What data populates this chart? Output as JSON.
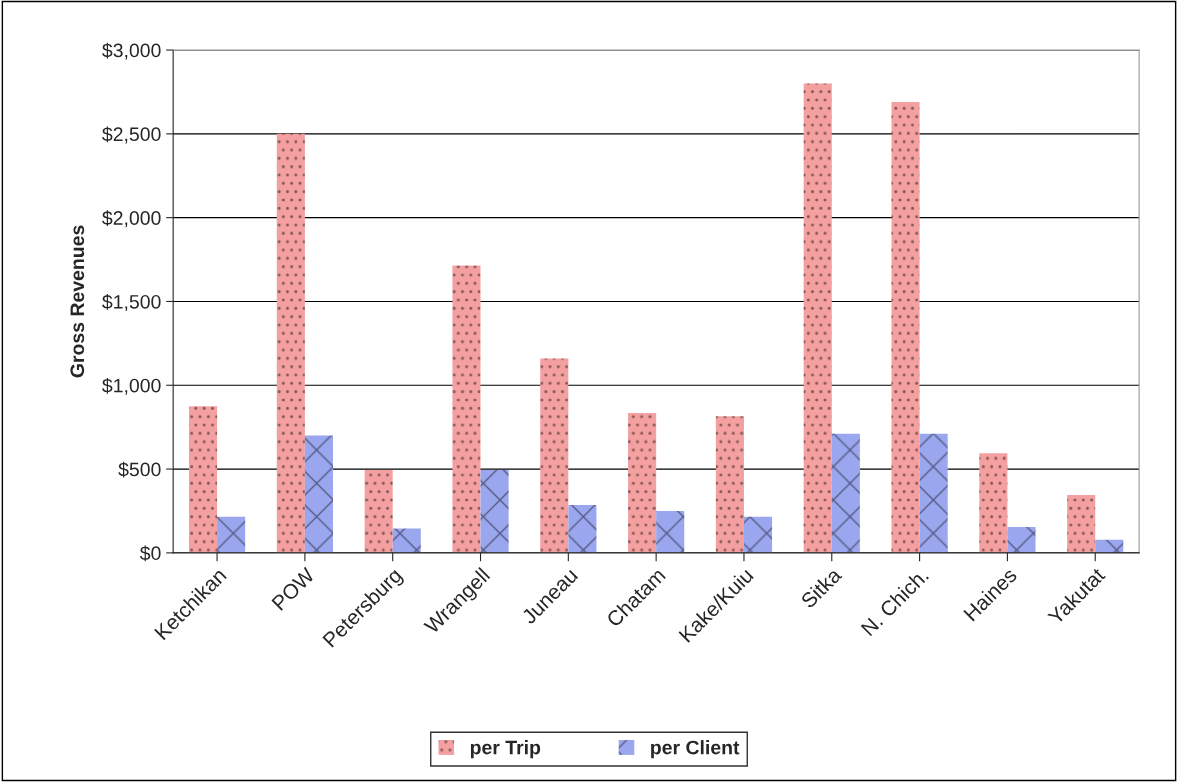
{
  "chart_data": {
    "type": "bar",
    "ylabel": "Gross Revenues",
    "categories": [
      "Ketchikan",
      "POW",
      "Petersburg",
      "Wrangell",
      "Juneau",
      "Chatam",
      "Kake/Kuiu",
      "Sitka",
      "N. Chich.",
      "Haines",
      "Yakutat"
    ],
    "series": [
      {
        "name": "per Trip",
        "color": "#f4a0a0",
        "values": [
          875,
          2500,
          495,
          1715,
          1160,
          835,
          815,
          2800,
          2690,
          595,
          345
        ]
      },
      {
        "name": "per Client",
        "color": "#9aa6ee",
        "values": [
          215,
          700,
          145,
          495,
          285,
          250,
          215,
          710,
          710,
          155,
          78
        ]
      }
    ],
    "ylim": [
      0,
      3000
    ],
    "yticks": [
      {
        "value": 0,
        "label": "$0"
      },
      {
        "value": 500,
        "label": "$500"
      },
      {
        "value": 1000,
        "label": "$1,000"
      },
      {
        "value": 1500,
        "label": "$1,500"
      },
      {
        "value": 2000,
        "label": "$2,000"
      },
      {
        "value": 2500,
        "label": "$2,500"
      },
      {
        "value": 3000,
        "label": "$3,000"
      }
    ],
    "grid": "y",
    "legend": "bottom"
  }
}
